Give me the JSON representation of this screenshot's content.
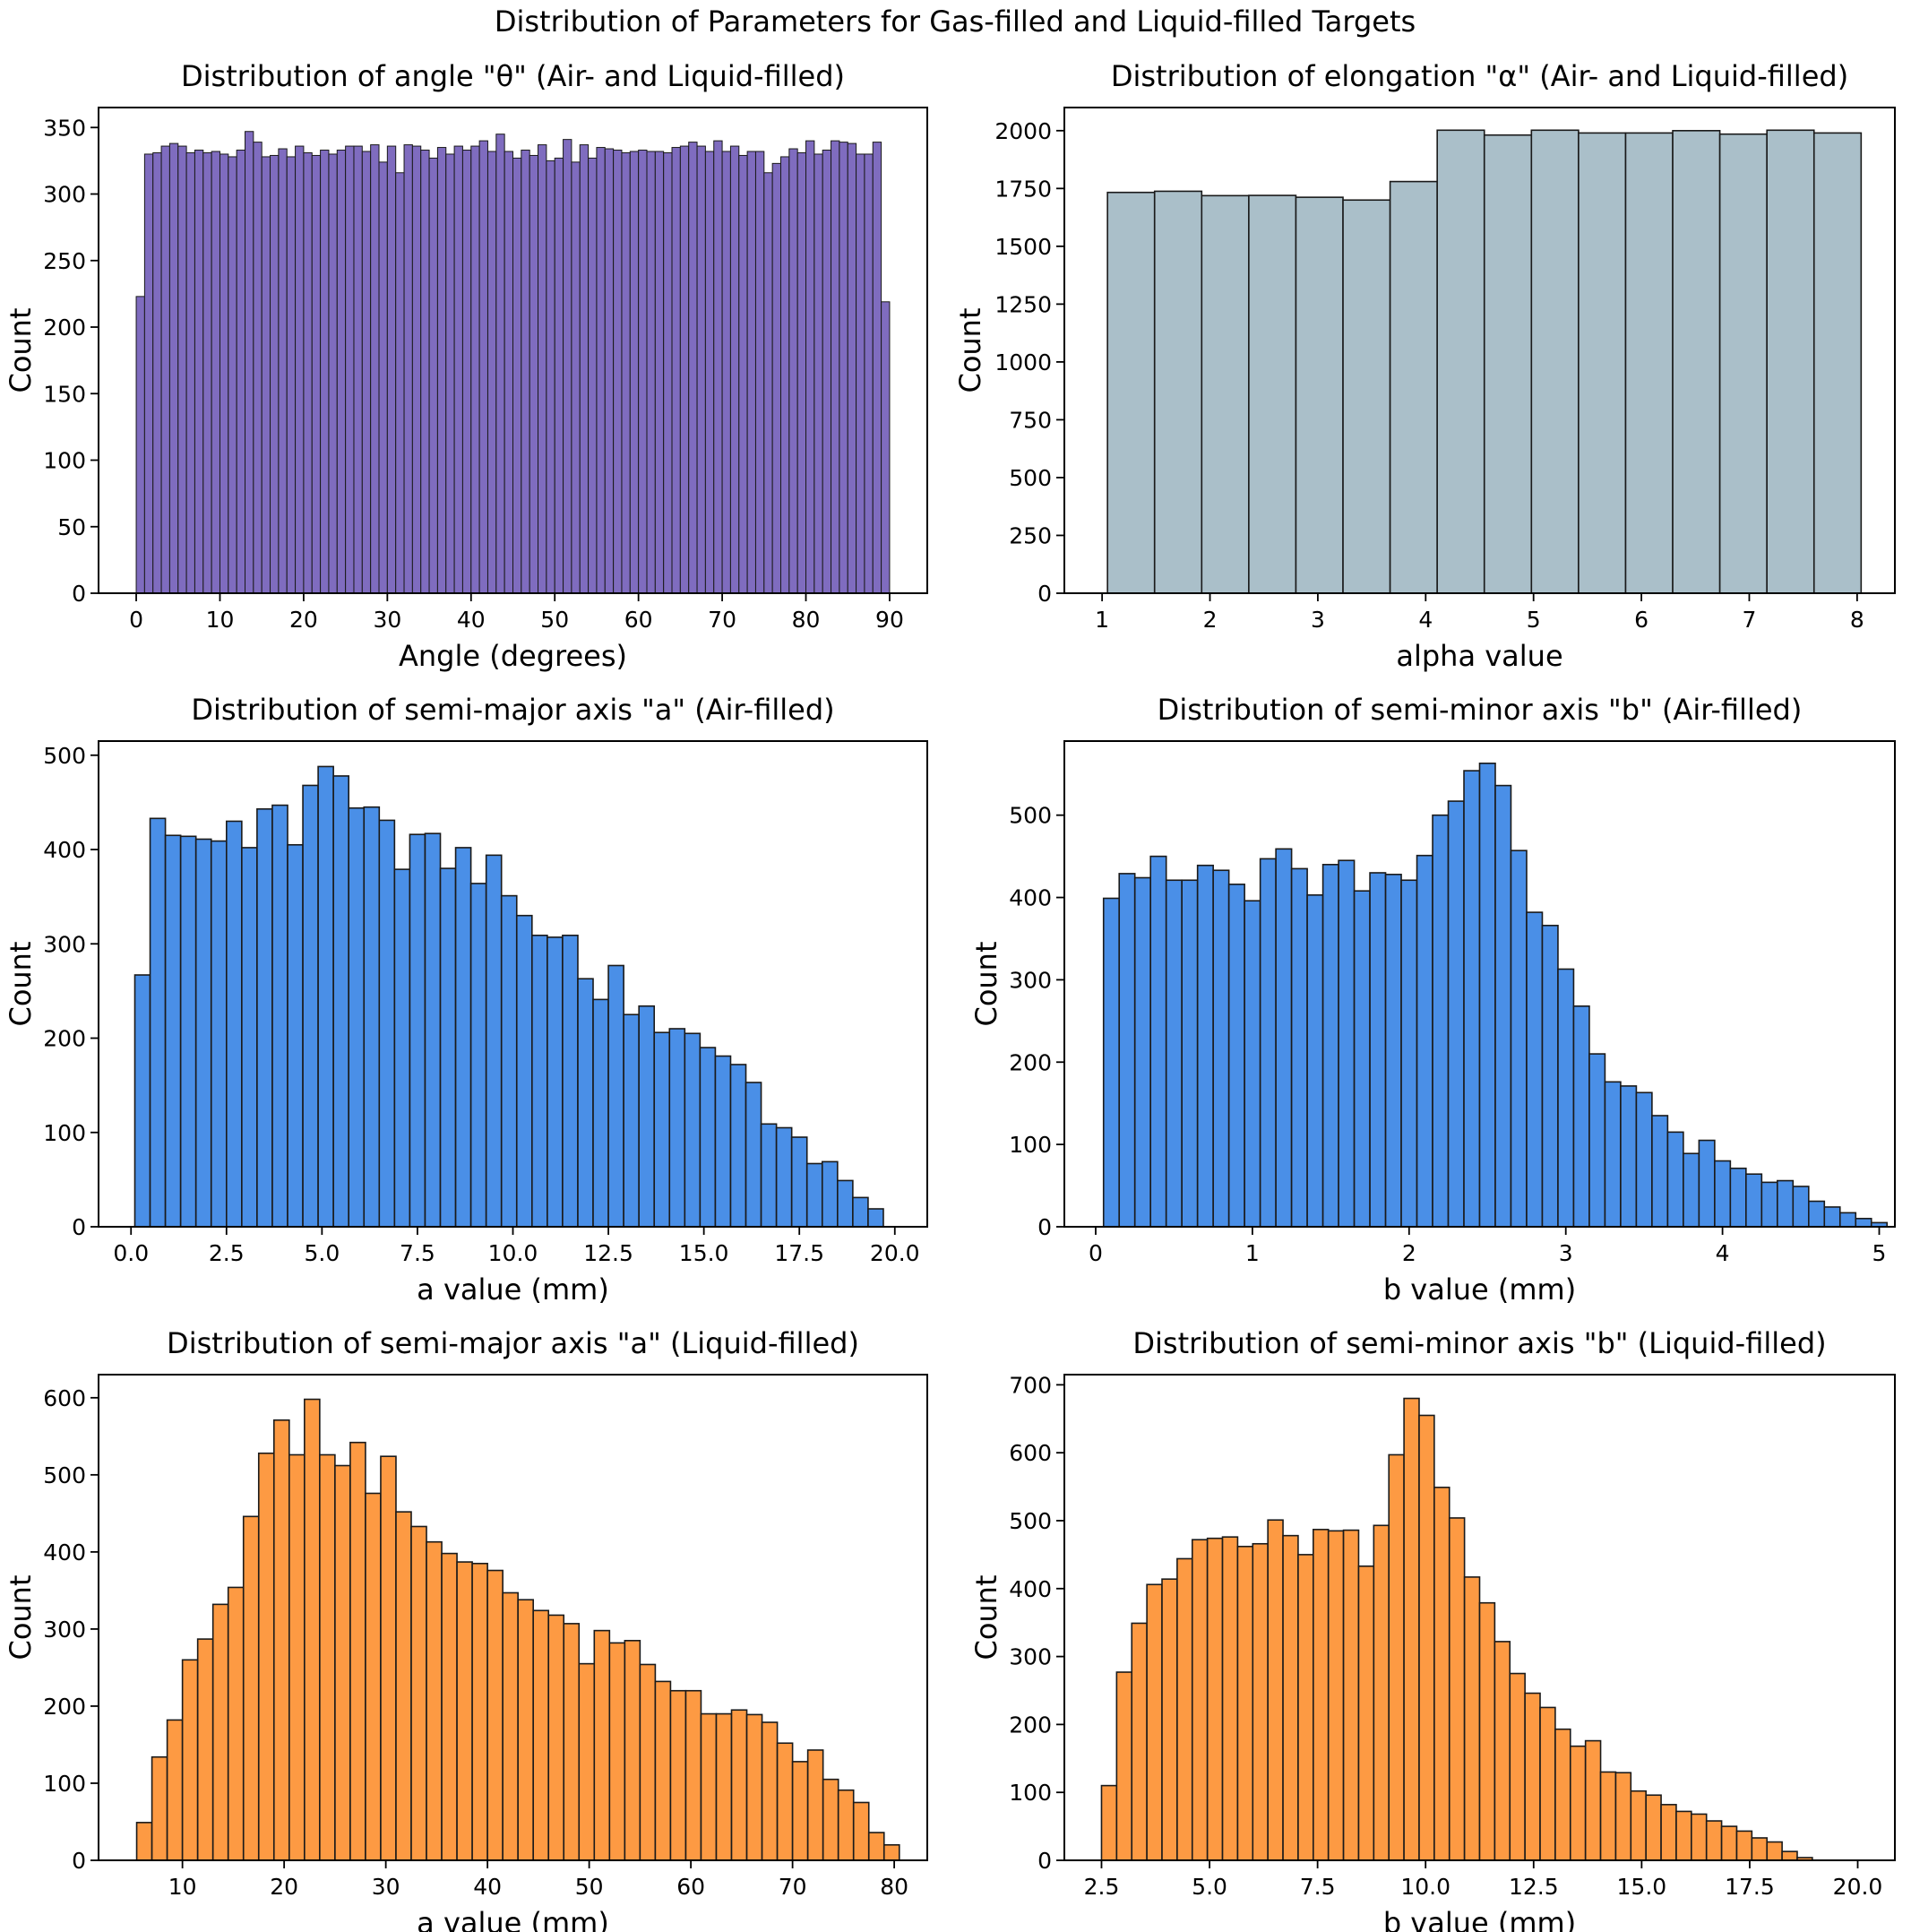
{
  "suptitle": "Distribution of Parameters for Gas-filled and Liquid-filled Targets",
  "chart_data": [
    {
      "type": "bar",
      "title": "Distribution of angle \"θ\" (Air- and Liquid-filled)",
      "xlabel": "Angle (degrees)",
      "ylabel": "Count",
      "color": "#7f6cbf",
      "xlim": [
        -4.5,
        94.5
      ],
      "ylim": [
        0,
        365
      ],
      "xticks": [
        0,
        10,
        20,
        30,
        40,
        50,
        60,
        70,
        80,
        90
      ],
      "xtick_labels": [
        "0",
        "10",
        "20",
        "30",
        "40",
        "50",
        "60",
        "70",
        "80",
        "90"
      ],
      "yticks": [
        0,
        50,
        100,
        150,
        200,
        250,
        300,
        350
      ],
      "ytick_labels": [
        "0",
        "50",
        "100",
        "150",
        "200",
        "250",
        "300",
        "350"
      ],
      "bin_start": 0,
      "bin_width": 1,
      "values": [
        223,
        330,
        331,
        336,
        338,
        336,
        331,
        333,
        331,
        332,
        330,
        328,
        333,
        347,
        339,
        328,
        329,
        334,
        328,
        336,
        331,
        329,
        333,
        330,
        333,
        336,
        336,
        332,
        337,
        324,
        336,
        316,
        337,
        336,
        333,
        327,
        335,
        330,
        336,
        333,
        336,
        340,
        332,
        345,
        332,
        327,
        333,
        329,
        337,
        325,
        327,
        341,
        324,
        337,
        327,
        335,
        334,
        333,
        331,
        332,
        333,
        332,
        332,
        331,
        335,
        336,
        339,
        336,
        332,
        340,
        332,
        336,
        329,
        332,
        332,
        316,
        323,
        328,
        334,
        331,
        340,
        330,
        333,
        340,
        339,
        338,
        330,
        330,
        339,
        219
      ]
    },
    {
      "type": "bar",
      "title": "Distribution of elongation \"α\" (Air- and Liquid-filled)",
      "xlabel": "alpha value",
      "ylabel": "Count",
      "color": "#aabfc9",
      "xlim": [
        0.65,
        8.35
      ],
      "ylim": [
        0,
        2100
      ],
      "xticks": [
        1,
        2,
        3,
        4,
        5,
        6,
        7,
        8
      ],
      "xtick_labels": [
        "1",
        "2",
        "3",
        "4",
        "5",
        "6",
        "7",
        "8"
      ],
      "yticks": [
        0,
        250,
        500,
        750,
        1000,
        1250,
        1500,
        1750,
        2000
      ],
      "ytick_labels": [
        "0",
        "250",
        "500",
        "750",
        "1000",
        "1250",
        "1500",
        "1750",
        "2000"
      ],
      "bin_start": 1.05,
      "bin_width": 0.4367,
      "values": [
        1733,
        1738,
        1719,
        1720,
        1712,
        1700,
        1780,
        2002,
        1981,
        2002,
        1990,
        1990,
        2000,
        1985,
        2002,
        1990
      ]
    },
    {
      "type": "bar",
      "title": "Distribution of semi-major axis \"a\" (Air-filled)",
      "xlabel": "a value (mm)",
      "ylabel": "Count",
      "color": "#4a8fe7",
      "xlim": [
        -0.85,
        20.85
      ],
      "ylim": [
        0,
        515
      ],
      "xticks": [
        0,
        2.5,
        5,
        7.5,
        10,
        12.5,
        15,
        17.5,
        20
      ],
      "xtick_labels": [
        "0.0",
        "2.5",
        "5.0",
        "7.5",
        "10.0",
        "12.5",
        "15.0",
        "17.5",
        "20.0"
      ],
      "yticks": [
        0,
        100,
        200,
        300,
        400,
        500
      ],
      "ytick_labels": [
        "0",
        "100",
        "200",
        "300",
        "400",
        "500"
      ],
      "bin_start": 0.1,
      "bin_width": 0.4,
      "values": [
        267,
        433,
        415,
        414,
        411,
        409,
        430,
        402,
        443,
        447,
        405,
        468,
        488,
        478,
        444,
        445,
        431,
        379,
        416,
        417,
        380,
        402,
        364,
        394,
        351,
        330,
        309,
        307,
        309,
        263,
        241,
        277,
        225,
        234,
        206,
        210,
        205,
        190,
        181,
        172,
        153,
        109,
        105,
        95,
        67,
        69,
        49,
        31,
        19
      ]
    },
    {
      "type": "bar",
      "title": "Distribution of semi-minor axis \"b\" (Air-filled)",
      "xlabel": "b value (mm)",
      "ylabel": "Count",
      "color": "#4a8fe7",
      "xlim": [
        -0.2,
        5.1
      ],
      "ylim": [
        0,
        590
      ],
      "xticks": [
        0,
        1,
        2,
        3,
        4,
        5
      ],
      "xtick_labels": [
        "0",
        "1",
        "2",
        "3",
        "4",
        "5"
      ],
      "yticks": [
        0,
        100,
        200,
        300,
        400,
        500
      ],
      "ytick_labels": [
        "0",
        "100",
        "200",
        "300",
        "400",
        "500"
      ],
      "bin_start": 0.05,
      "bin_width": 0.1,
      "values": [
        399,
        429,
        424,
        450,
        421,
        421,
        439,
        433,
        416,
        396,
        447,
        459,
        435,
        403,
        440,
        445,
        408,
        430,
        428,
        421,
        451,
        500,
        517,
        554,
        563,
        536,
        457,
        382,
        366,
        313,
        268,
        210,
        176,
        171,
        163,
        135,
        115,
        89,
        105,
        80,
        71,
        64,
        54,
        56,
        49,
        31,
        24,
        17,
        10,
        5
      ]
    },
    {
      "type": "bar",
      "title": "Distribution of semi-major axis \"a\" (Liquid-filled)",
      "xlabel": "a value (mm)",
      "ylabel": "Count",
      "color": "#fd9a43",
      "xlim": [
        1.75,
        83.25
      ],
      "ylim": [
        0,
        630
      ],
      "xticks": [
        10,
        20,
        30,
        40,
        50,
        60,
        70,
        80
      ],
      "xtick_labels": [
        "10",
        "20",
        "30",
        "40",
        "50",
        "60",
        "70",
        "80"
      ],
      "yticks": [
        0,
        100,
        200,
        300,
        400,
        500,
        600
      ],
      "ytick_labels": [
        "0",
        "100",
        "200",
        "300",
        "400",
        "500",
        "600"
      ],
      "bin_start": 5.5,
      "bin_width": 1.5,
      "values": [
        49,
        134,
        182,
        260,
        287,
        332,
        354,
        446,
        528,
        571,
        526,
        598,
        526,
        512,
        542,
        476,
        524,
        452,
        433,
        413,
        398,
        387,
        385,
        376,
        347,
        338,
        324,
        318,
        307,
        255,
        298,
        282,
        285,
        254,
        232,
        220,
        220,
        190,
        190,
        195,
        189,
        179,
        152,
        128,
        143,
        105,
        91,
        75,
        36,
        20
      ]
    },
    {
      "type": "bar",
      "title": "Distribution of semi-minor axis \"b\" (Liquid-filled)",
      "xlabel": "b value (mm)",
      "ylabel": "Count",
      "color": "#fd9a43",
      "xlim": [
        1.64,
        20.86
      ],
      "ylim": [
        0,
        715
      ],
      "xticks": [
        2.5,
        5,
        7.5,
        10,
        12.5,
        15,
        17.5,
        20
      ],
      "xtick_labels": [
        "2.5",
        "5.0",
        "7.5",
        "10.0",
        "12.5",
        "15.0",
        "17.5",
        "20.0"
      ],
      "yticks": [
        0,
        100,
        200,
        300,
        400,
        500,
        600,
        700
      ],
      "ytick_labels": [
        "0",
        "100",
        "200",
        "300",
        "400",
        "500",
        "600",
        "700"
      ],
      "bin_start": 2.5,
      "bin_width": 0.35,
      "values": [
        110,
        277,
        349,
        406,
        414,
        444,
        472,
        474,
        476,
        462,
        466,
        501,
        478,
        450,
        487,
        485,
        486,
        433,
        493,
        597,
        680,
        655,
        549,
        504,
        417,
        379,
        322,
        275,
        246,
        225,
        193,
        168,
        176,
        130,
        129,
        102,
        96,
        82,
        72,
        68,
        58,
        50,
        43,
        33,
        27,
        13,
        4
      ]
    }
  ]
}
